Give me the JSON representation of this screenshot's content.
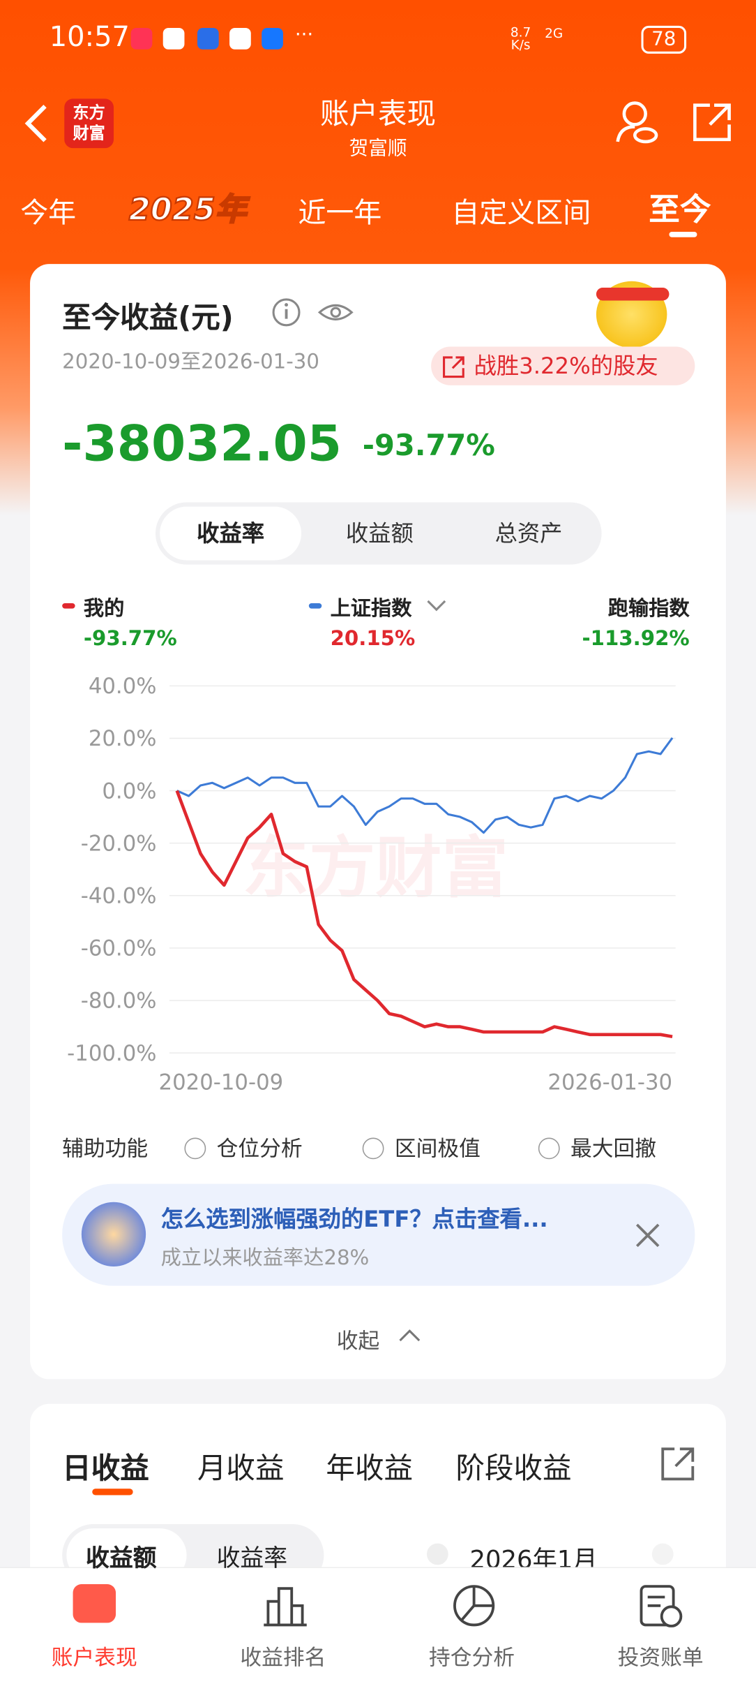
{
  "status_bar": {
    "time": "10:57",
    "more": "···",
    "speed": "8.7\nK/s",
    "network": "2G",
    "battery": "78"
  },
  "header": {
    "logo": "东方\n财富",
    "title": "账户表现",
    "subtitle": "贺富顺"
  },
  "tabs": [
    "今年",
    "2025年",
    "近一年",
    "自定义区间",
    "至今"
  ],
  "summary": {
    "title": "至今收益(元)",
    "date_range": "2020-10-09至2026-01-30",
    "beat": "战胜3.22%的股友",
    "amount": "-38032.05",
    "rate": "-93.77%",
    "segments": [
      "收益率",
      "收益额",
      "总资产"
    ]
  },
  "legend_values": [
    "-93.77%",
    "20.15%"
  ],
  "comparison": {
    "label": "跑输指数",
    "value": "-113.92%"
  },
  "chart_data": {
    "type": "line",
    "watermark": "东方财富",
    "categories": [
      "2020-10-09",
      null,
      null,
      null,
      null,
      null,
      null,
      null,
      null,
      null,
      null,
      null,
      null,
      null,
      null,
      null,
      null,
      null,
      null,
      null,
      null,
      null,
      null,
      null,
      null,
      null,
      null,
      null,
      null,
      null,
      null,
      null,
      null,
      null,
      null,
      null,
      null,
      null,
      null,
      null,
      null,
      null,
      "2026-01-30"
    ],
    "series": [
      {
        "name": "我的",
        "color": "#e0282e",
        "values": [
          0,
          -12,
          -24,
          -31,
          -36,
          -27,
          -18,
          -14,
          -9,
          -24,
          -27,
          -29,
          -51,
          -57,
          -61,
          -72,
          -76,
          -80,
          -85,
          -86,
          -88,
          -90,
          -89,
          -90,
          -90,
          -91,
          -92,
          -92,
          -92,
          -92,
          -92,
          -92,
          -90,
          -91,
          -92,
          -93,
          -93,
          -93,
          -93,
          -93,
          -93,
          -93,
          -93.77
        ]
      },
      {
        "name": "上证指数",
        "color": "#3d7bd6",
        "values": [
          0,
          -2,
          2,
          3,
          1,
          3,
          5,
          2,
          5,
          5,
          3,
          3,
          -6,
          -6,
          -2,
          -6,
          -13,
          -8,
          -6,
          -3,
          -3,
          -5,
          -5,
          -9,
          -10,
          -12,
          -16,
          -11,
          -10,
          -13,
          -14,
          -13,
          -3,
          -2,
          -4,
          -2,
          -3,
          0,
          5,
          14,
          15,
          14,
          20.15
        ]
      }
    ],
    "ylim": [
      -100,
      40
    ],
    "yticks": [
      {
        "value": 40,
        "label": "40.0%"
      },
      {
        "value": 20,
        "label": "20.0%"
      },
      {
        "value": 0,
        "label": "0.0%"
      },
      {
        "value": -20,
        "label": "-20.0%"
      },
      {
        "value": -40,
        "label": "-40.0%"
      },
      {
        "value": -60,
        "label": "-60.0%"
      },
      {
        "value": -80,
        "label": "-80.0%"
      },
      {
        "value": -100,
        "label": "-100.0%"
      }
    ],
    "grid": true
  },
  "aux": {
    "label": "辅助功能",
    "options": [
      "仓位分析",
      "区间极值",
      "最大回撤"
    ]
  },
  "promo": {
    "title": "怎么选到涨幅强劲的ETF？点击查看...",
    "subtitle": "成立以来收益率达28%"
  },
  "collapse": "收起",
  "earnings": {
    "tabs": [
      "日收益",
      "月收益",
      "年收益",
      "阶段收益"
    ],
    "toggle": [
      "收益额",
      "收益率"
    ],
    "month": "2026年1月"
  },
  "bottom_nav": [
    "账户表现",
    "收益排名",
    "持仓分析",
    "投资账单"
  ]
}
